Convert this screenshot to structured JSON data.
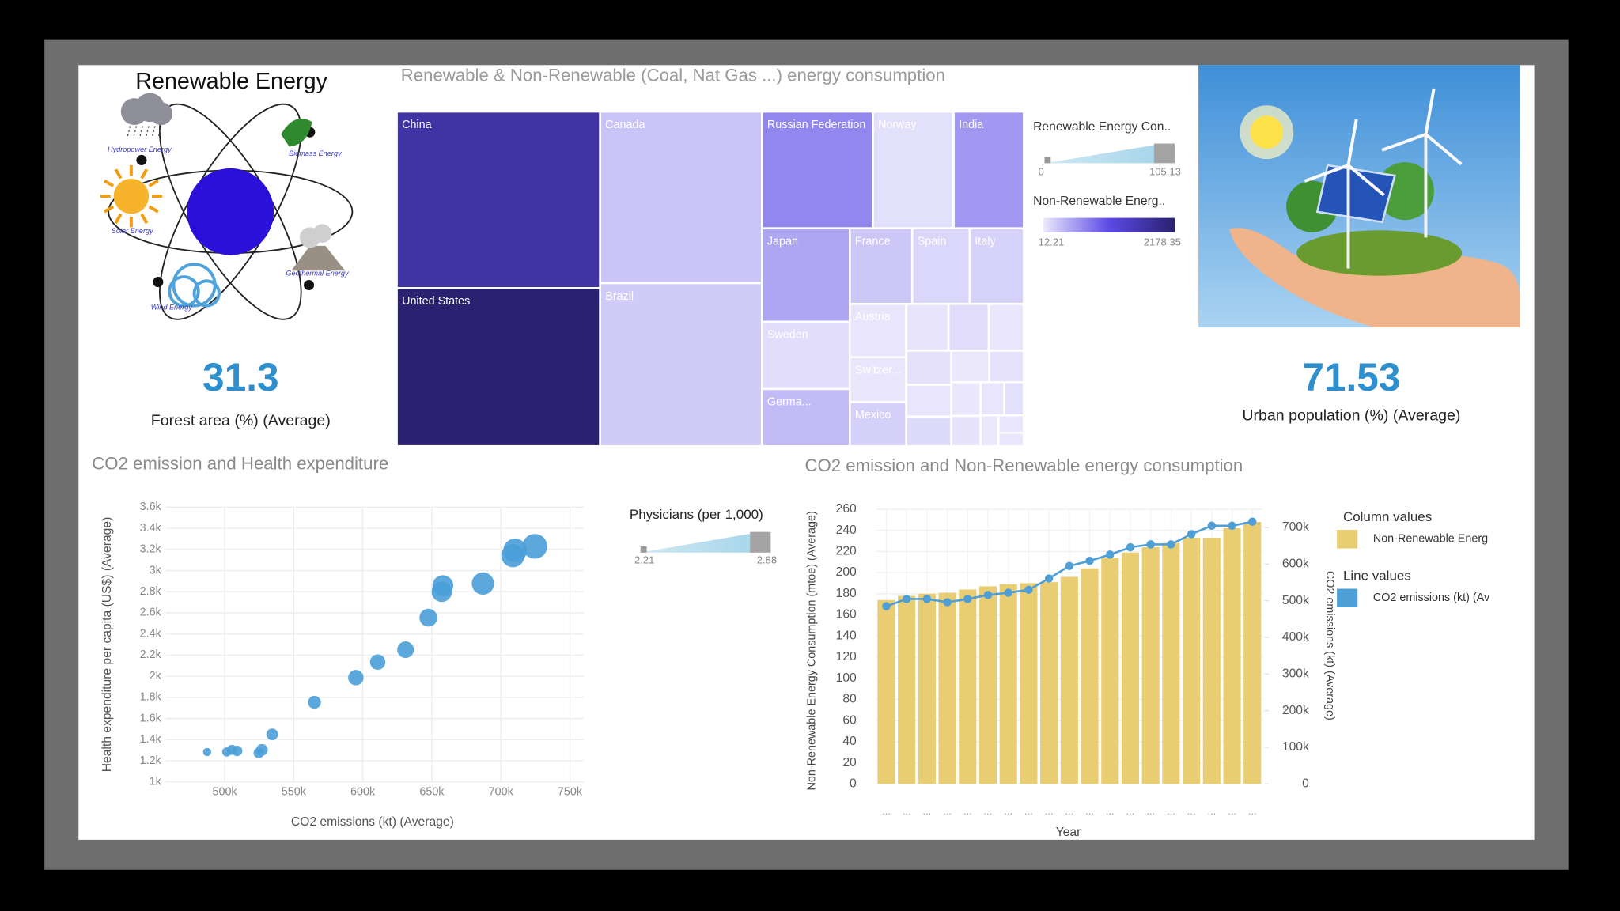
{
  "header": {
    "title": "Renewable Energy"
  },
  "illustration": {
    "labels": [
      "Hydropower Energy",
      "Biomass Energy",
      "Solar Energy",
      "Geothermal Energy",
      "Wind Energy"
    ]
  },
  "kpis": [
    {
      "value": 31.3,
      "label": "Forest area (%) (Average)"
    },
    {
      "value": 71.53,
      "label": "Urban population (%) (Average)"
    }
  ],
  "chart_data": [
    {
      "type": "treemap",
      "title": "Renewable & Non-Renewable (Coal, Nat Gas ...) energy consumption",
      "categories": [
        "China",
        "United States",
        "Canada",
        "Brazil",
        "Russian Federation",
        "Norway",
        "India",
        "Japan",
        "Sweden",
        "Germa...",
        "France",
        "Spain",
        "Italy",
        "Austria",
        "Switzer...",
        "Mexico",
        null,
        null,
        null,
        null,
        null,
        null,
        null,
        null,
        null,
        null,
        null,
        null,
        null,
        null,
        null
      ],
      "values": [
        105.13,
        94.1,
        81.3,
        77.3,
        37.9,
        27.6,
        24.0,
        24.0,
        17.3,
        14.7,
        13.8,
        12.7,
        12.0,
        8.8,
        7.4,
        7.3,
        5.8,
        5.5,
        4.8,
        4.5,
        4.2,
        3.9,
        3.5,
        3.2,
        2.9,
        2.6,
        2.3,
        1.9,
        1.6,
        1.3,
        1.0
      ],
      "color_values": [
        1700,
        2178.35,
        260,
        210,
        680,
        70,
        560,
        470,
        85,
        320,
        240,
        130,
        160,
        35,
        28,
        180,
        40,
        95,
        22,
        60,
        30,
        110,
        15,
        50,
        18,
        45,
        25,
        70,
        12.21,
        35,
        20
      ],
      "colors": [
        "#ebe8fc",
        "#5b4ae6",
        "#2a2170"
      ],
      "size_legend": {
        "title": "Renewable Energy Con..",
        "range": [
          0,
          105.13
        ]
      },
      "color_legend": {
        "title": "Non-Renewable Energ..",
        "range": [
          12.21,
          2178.35
        ]
      }
    },
    {
      "type": "scatter",
      "title": "CO2 emission and Health expenditure",
      "x_label": "CO2 emissions (kt) (Average)",
      "y_label": "Health expenditure per capita (US$) (Average)",
      "color": "#4a9fd8",
      "grid": true,
      "xlim": [
        457000,
        760000
      ],
      "xticks": [
        {
          "value": 500000,
          "label": "500k"
        },
        {
          "value": 550000,
          "label": "550k"
        },
        {
          "value": 600000,
          "label": "600k"
        },
        {
          "value": 650000,
          "label": "650k"
        },
        {
          "value": 700000,
          "label": "700k"
        },
        {
          "value": 750000,
          "label": "750k"
        }
      ],
      "ylim": [
        1000,
        3600
      ],
      "yticks": [
        {
          "value": 1000,
          "label": "1k"
        },
        {
          "value": 1200,
          "label": "1.2k"
        },
        {
          "value": 1400,
          "label": "1.4k"
        },
        {
          "value": 1600,
          "label": "1.6k"
        },
        {
          "value": 1800,
          "label": "1.8k"
        },
        {
          "value": 2000,
          "label": "2k"
        },
        {
          "value": 2200,
          "label": "2.2k"
        },
        {
          "value": 2400,
          "label": "2.4k"
        },
        {
          "value": 2600,
          "label": "2.6k"
        },
        {
          "value": 2800,
          "label": "2.8k"
        },
        {
          "value": 3000,
          "label": "3k"
        },
        {
          "value": 3200,
          "label": "3.2k"
        },
        {
          "value": 3400,
          "label": "3.4k"
        },
        {
          "value": 3600,
          "label": "3.6k"
        }
      ],
      "x": [
        487300,
        501500,
        505200,
        509000,
        524700,
        527000,
        534400,
        565000,
        595000,
        610800,
        631000,
        647500,
        657200,
        658000,
        687000,
        708800,
        710300,
        724600
      ],
      "values": [
        1283,
        1283,
        1303,
        1293,
        1274,
        1303,
        1450,
        1753,
        1987,
        2134,
        2251,
        2554,
        2799,
        2857,
        2877,
        3141,
        3190,
        3229
      ],
      "sizes": [
        2.21,
        2.25,
        2.28,
        2.3,
        2.3,
        2.35,
        2.35,
        2.4,
        2.5,
        2.5,
        2.55,
        2.6,
        2.7,
        2.72,
        2.78,
        2.82,
        2.84,
        2.88
      ],
      "size_legend": {
        "title": "Physicians (per 1,000)",
        "range": [
          2.21,
          2.88
        ]
      }
    },
    {
      "type": "combo",
      "title": "CO2 emission and Non-Renewable energy consumption",
      "x_label": "Year",
      "y_label": "Non-Renewable Energy Consumption (mtoe) (Average)",
      "y2_label": "CO2 emissions (kt) (Average)",
      "categories": [
        "...",
        "...",
        "...",
        "...",
        "...",
        "...",
        "...",
        "...",
        "...",
        "...",
        "...",
        "...",
        "...",
        "...",
        "...",
        "...",
        "...",
        "...",
        "..."
      ],
      "ylim": [
        0,
        260
      ],
      "yticks": [
        0,
        20,
        40,
        60,
        80,
        100,
        120,
        140,
        160,
        180,
        200,
        220,
        240,
        260
      ],
      "y2lim": [
        0,
        750000
      ],
      "y2ticks": [
        {
          "value": 0,
          "label": "0"
        },
        {
          "value": 100000,
          "label": "100k"
        },
        {
          "value": 200000,
          "label": "200k"
        },
        {
          "value": 300000,
          "label": "300k"
        },
        {
          "value": 400000,
          "label": "400k"
        },
        {
          "value": 500000,
          "label": "500k"
        },
        {
          "value": 600000,
          "label": "600k"
        },
        {
          "value": 700000,
          "label": "700k"
        }
      ],
      "series": [
        {
          "name": "Non-Renewable Energ",
          "legend_group": "Column values",
          "type": "bar",
          "color": "#e9cd72",
          "values": [
            174,
            178,
            180,
            181,
            184,
            187,
            189,
            190,
            191,
            196,
            204,
            214,
            219,
            224,
            228,
            233,
            233,
            242,
            248
          ]
        },
        {
          "name": "CO2 emissions (kt) (Av",
          "legend_group": "Line values",
          "type": "line",
          "axis": "y2",
          "color": "#4f9ed6",
          "values": [
            485000,
            505000,
            505000,
            496000,
            505000,
            516000,
            522000,
            530000,
            561000,
            595000,
            609000,
            626000,
            646000,
            654000,
            654000,
            682000,
            705000,
            705000,
            716000
          ]
        }
      ]
    }
  ]
}
